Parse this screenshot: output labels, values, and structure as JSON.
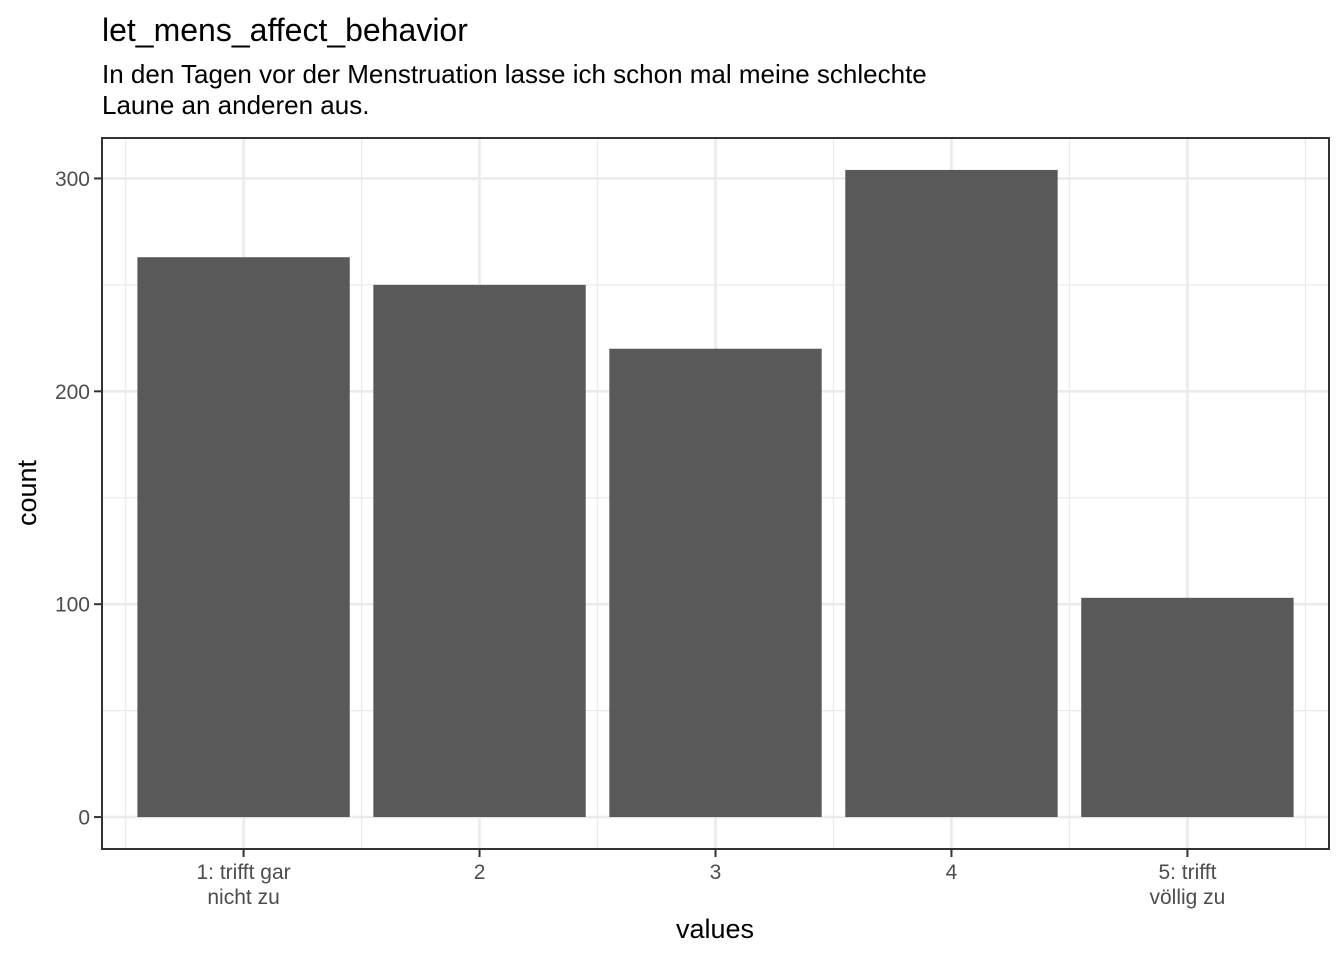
{
  "chart_data": {
    "type": "bar",
    "title": "let_mens_affect_behavior",
    "subtitle": [
      "In den Tagen vor der Menstruation lasse ich schon mal meine schlechte",
      "Laune an anderen aus."
    ],
    "xlabel": "values",
    "ylabel": "count",
    "categories": [
      [
        "1: trifft gar",
        "nicht zu"
      ],
      [
        "2"
      ],
      [
        "3"
      ],
      [
        "4"
      ],
      [
        "5: trifft",
        "völlig zu"
      ]
    ],
    "values": [
      263,
      250,
      220,
      304,
      103
    ],
    "ylim": [
      -15,
      319
    ],
    "yticks": [
      0,
      100,
      200,
      300
    ],
    "grid": true,
    "bar_color": "#595959",
    "legend": "none"
  }
}
